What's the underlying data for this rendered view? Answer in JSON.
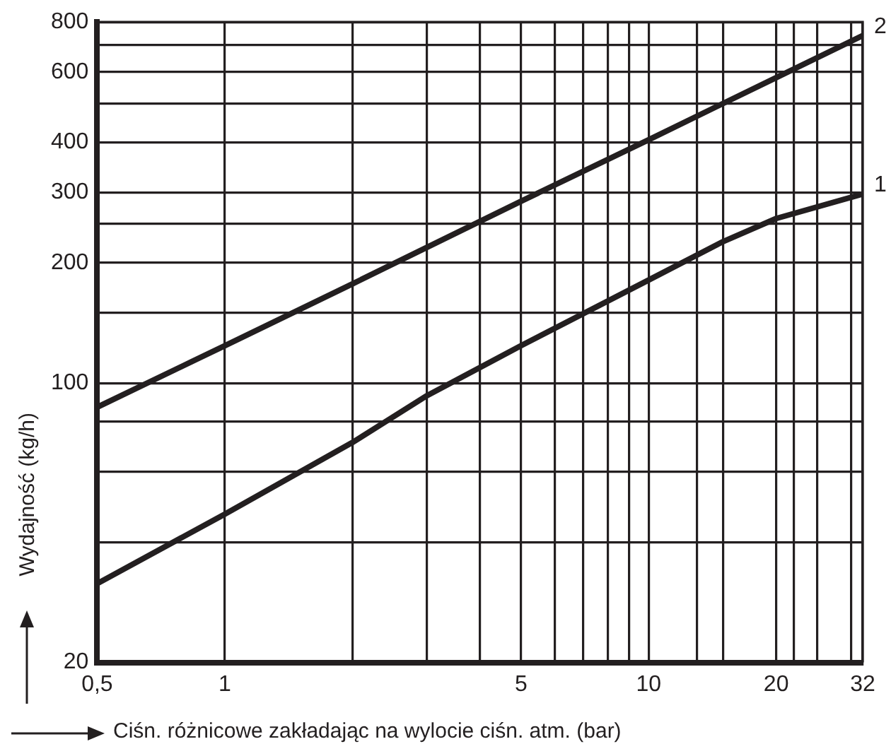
{
  "chart_data": {
    "type": "line",
    "xlabel": "Ciśn. różnicowe zakładając na wylocie ciśn. atm. (bar)",
    "ylabel": "Wydajność (kg/h)",
    "series": [
      {
        "name": "2",
        "color": "#231f20",
        "x": [
          0.5,
          1,
          2,
          5,
          10,
          20,
          32
        ],
        "values": [
          87,
          124,
          177,
          285,
          406,
          581,
          740
        ]
      },
      {
        "name": "1",
        "color": "#231f20",
        "x": [
          0.5,
          1,
          2,
          3,
          5,
          10,
          15,
          20,
          32
        ],
        "values": [
          31.5,
          47,
          71,
          93,
          124,
          181,
          226,
          258,
          297
        ]
      }
    ],
    "log": "xy",
    "grid": true,
    "marker": "none",
    "line_style": "solid",
    "xlim": [
      0.5,
      32
    ],
    "ylim": [
      20,
      800
    ],
    "xticks": [
      {
        "value": 0.5,
        "label": "0,5"
      },
      1,
      {
        "value": 2,
        "label": null
      },
      {
        "value": 3,
        "label": null
      },
      {
        "value": 4,
        "label": null
      },
      5,
      {
        "value": 6,
        "label": null
      },
      {
        "value": 7,
        "label": null
      },
      {
        "value": 8,
        "label": null
      },
      {
        "value": 9,
        "label": null
      },
      10,
      {
        "value": 13,
        "label": null
      },
      {
        "value": 15,
        "label": null
      },
      20,
      {
        "value": 22,
        "label": null
      },
      {
        "value": 25,
        "label": null
      },
      {
        "value": 30,
        "label": null
      },
      32
    ],
    "yticks": [
      20,
      {
        "value": 40,
        "label": null
      },
      {
        "value": 60,
        "label": null
      },
      {
        "value": 80,
        "label": null
      },
      100,
      {
        "value": 150,
        "label": null
      },
      200,
      {
        "value": 250,
        "label": null
      },
      300,
      400,
      {
        "value": 500,
        "label": null
      },
      600,
      {
        "value": 700,
        "label": null
      },
      800
    ]
  }
}
